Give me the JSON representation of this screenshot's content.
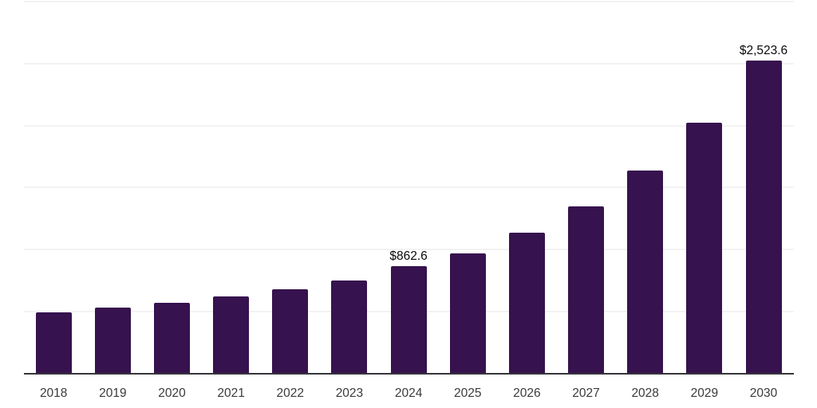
{
  "chart_data": {
    "type": "bar",
    "title": "",
    "xlabel": "",
    "ylabel": "",
    "categories": [
      "2018",
      "2019",
      "2020",
      "2021",
      "2022",
      "2023",
      "2024",
      "2025",
      "2026",
      "2027",
      "2028",
      "2029",
      "2030"
    ],
    "values": [
      495,
      530,
      566,
      618,
      676,
      752,
      862.6,
      970,
      1135,
      1350,
      1635,
      2020,
      2523.6
    ],
    "value_labels": {
      "2024": "$862.6",
      "2030": "$2,523.6"
    },
    "ylim": [
      0,
      3000
    ],
    "grid_step": 500,
    "grid": "horizontal-only",
    "y_tick_labels_visible": false,
    "legend": "none",
    "colors": {
      "background": "#FFFFFF",
      "bar": "#36124E",
      "gridline": "#F2F2F2",
      "axis_line": "#35353B",
      "value_label": "#0A0A0A",
      "tick_label": "#3A3A3A"
    }
  }
}
